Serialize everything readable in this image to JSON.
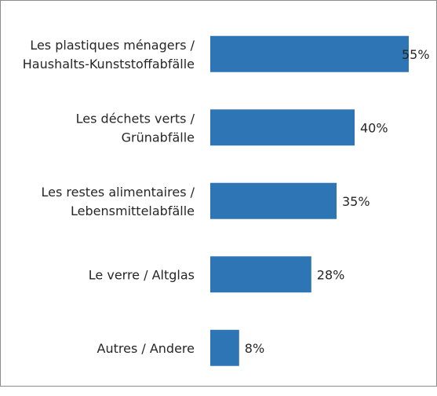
{
  "chart_data": {
    "type": "bar",
    "orientation": "horizontal",
    "title": "",
    "xlabel": "",
    "ylabel": "",
    "categories": [
      [
        "Les plastiques ménagers /",
        "Haushalts-Kunststoffabfälle"
      ],
      [
        "Les déchets verts /",
        "Grünabfälle"
      ],
      [
        "Les restes alimentaires /",
        "Lebensmittelabfälle"
      ],
      [
        "Le verre / Altglas"
      ],
      [
        "Autres / Andere"
      ]
    ],
    "values": [
      55,
      40,
      35,
      28,
      8
    ],
    "value_labels": [
      "55%",
      "40%",
      "35%",
      "28%",
      "8%"
    ],
    "xlim": [
      0,
      55
    ],
    "unit": "%",
    "grid": false,
    "legend": "none",
    "bar_color": "#2e75b6"
  }
}
